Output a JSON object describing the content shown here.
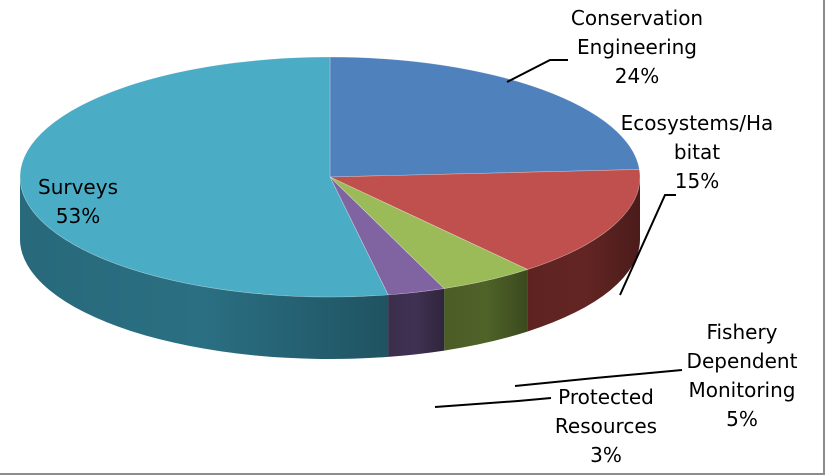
{
  "chart_data": {
    "type": "pie",
    "style": "3d",
    "title": "",
    "legend": "none",
    "slices": [
      {
        "label": "Conservation Engineering",
        "value": 24,
        "label_lines": [
          "Conservation",
          "Engineering",
          "24%"
        ],
        "color": "#4f81bd",
        "side_color": "#2c4d75"
      },
      {
        "label": "Ecosystems/Habitat",
        "value": 15,
        "label_lines": [
          "Ecosystems/Ha",
          "bitat",
          "15%"
        ],
        "color": "#c0504d",
        "side_color": "#632523"
      },
      {
        "label": "Fishery Dependent Monitoring",
        "value": 5,
        "label_lines": [
          "Fishery",
          "Dependent",
          "Monitoring",
          "5%"
        ],
        "color": "#9bbb59",
        "side_color": "#4f6228"
      },
      {
        "label": "Protected Resources",
        "value": 3,
        "label_lines": [
          "Protected",
          "Resources",
          "3%"
        ],
        "color": "#8064a2",
        "side_color": "#3f3151"
      },
      {
        "label": "Surveys",
        "value": 53,
        "label_lines": [
          "Surveys",
          "53%"
        ],
        "color": "#4bacc6",
        "side_color": "#2a6f82"
      }
    ]
  }
}
